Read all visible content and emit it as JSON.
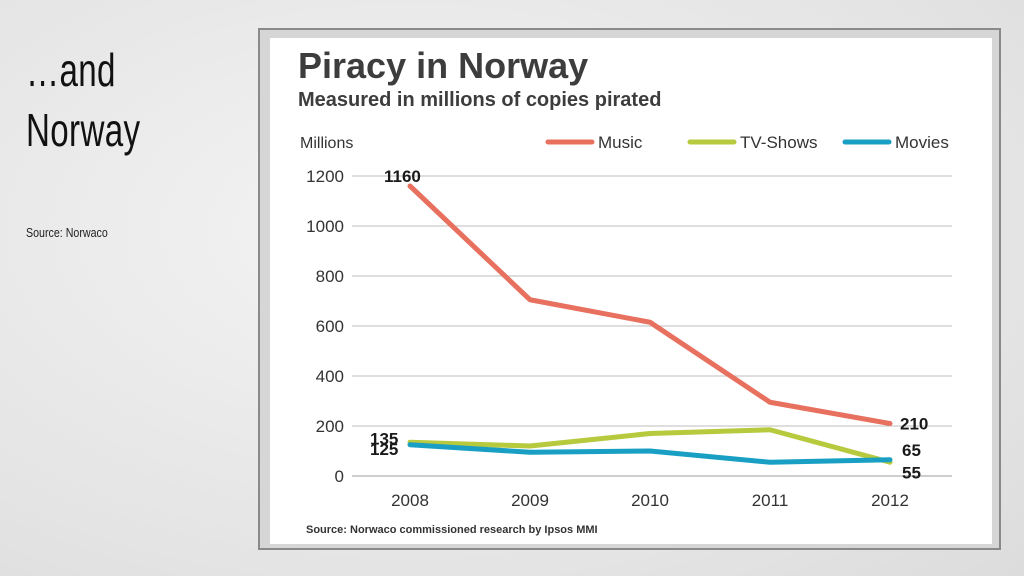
{
  "slide": {
    "title": "…and\nNorway",
    "source": "Source: Norwaco"
  },
  "colors": {
    "music": "#e8705e",
    "tv_shows": "#b7c93d",
    "movies": "#1a9fc4",
    "grid": "#bdbdbd"
  },
  "chart_data": {
    "type": "line",
    "title": "Piracy in Norway",
    "subtitle": "Measured in millions of copies pirated",
    "ylabel": "Millions",
    "xlabel": "",
    "x": [
      "2008",
      "2009",
      "2010",
      "2011",
      "2012"
    ],
    "y_ticks": [
      "0",
      "200",
      "400",
      "600",
      "800",
      "1000",
      "1200"
    ],
    "ylim": [
      0,
      1200
    ],
    "grid": true,
    "legend_position": "top-right",
    "series": [
      {
        "name": "Music",
        "values": [
          1160,
          705,
          615,
          295,
          210
        ]
      },
      {
        "name": "TV-Shows",
        "values": [
          135,
          120,
          170,
          185,
          55
        ]
      },
      {
        "name": "Movies",
        "values": [
          125,
          95,
          100,
          55,
          65
        ]
      }
    ],
    "data_labels": [
      {
        "text": "1160",
        "series": "Music",
        "x": "2008"
      },
      {
        "text": "135",
        "series": "TV-Shows",
        "x": "2008"
      },
      {
        "text": "125",
        "series": "Movies",
        "x": "2008"
      },
      {
        "text": "210",
        "series": "Music",
        "x": "2012"
      },
      {
        "text": "65",
        "series": "Movies",
        "x": "2012"
      },
      {
        "text": "55",
        "series": "TV-Shows",
        "x": "2012"
      }
    ],
    "source": "Source: Norwaco commissioned research by Ipsos MMI"
  }
}
